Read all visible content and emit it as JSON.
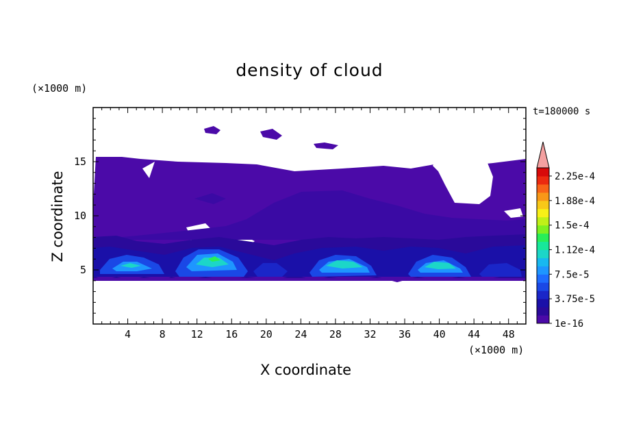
{
  "chart_data": {
    "type": "heatmap",
    "title": "density of cloud",
    "xlabel": "X coordinate",
    "ylabel": "Z coordinate",
    "x_unit": "(×1000 m)",
    "y_unit": "(×1000 m)",
    "time_label": "t=180000 s",
    "xlim": [
      0,
      50
    ],
    "ylim": [
      0,
      20
    ],
    "x_ticks": [
      "4",
      "8",
      "12",
      "16",
      "20",
      "24",
      "28",
      "32",
      "36",
      "40",
      "44",
      "48"
    ],
    "x_tick_values": [
      4,
      8,
      12,
      16,
      20,
      24,
      28,
      32,
      36,
      40,
      44,
      48
    ],
    "y_ticks": [
      "5",
      "10",
      "15"
    ],
    "y_tick_values": [
      5,
      10,
      15
    ],
    "colorbar": {
      "labels": [
        "1e-16",
        "3.75e-5",
        "7.5e-5",
        "1.12e-4",
        "1.5e-4",
        "1.88e-4",
        "2.25e-4"
      ],
      "levels": [
        1e-16,
        3.75e-05,
        7.5e-05,
        0.000112,
        0.00015,
        0.000188,
        0.000225
      ],
      "colors": [
        "#4b0aa8",
        "#2a0a9a",
        "#1a10a8",
        "#1a26c8",
        "#1a48e6",
        "#1e6cff",
        "#1e96ff",
        "#18b8f0",
        "#1cd6c8",
        "#18e89a",
        "#28ee58",
        "#7ef020",
        "#c0f018",
        "#f8f018",
        "#f8c818",
        "#f89818",
        "#f86418",
        "#ec2a10",
        "#d80a0a"
      ],
      "overflow_color": "#f4a0a0"
    },
    "field_regions": [
      {
        "level": 0,
        "z_range": [
          4.3,
          15.3
        ],
        "x_range": [
          0,
          50
        ],
        "note": "background cloud layer"
      },
      {
        "level": 1,
        "z_range": [
          9.0,
          12.0
        ],
        "x_range": [
          19,
          35
        ]
      },
      {
        "level": 2,
        "z_range": [
          4.3,
          8.3
        ],
        "x_range": [
          0,
          50
        ]
      },
      {
        "level": 3,
        "z_range": [
          4.5,
          7.5
        ],
        "x_range": [
          0,
          50
        ]
      },
      {
        "level": 5,
        "z_range": [
          4.8,
          6.6
        ],
        "x_range": [
          2,
          8
        ]
      },
      {
        "level": 6,
        "z_range": [
          4.8,
          7.2
        ],
        "x_range": [
          11,
          18
        ]
      },
      {
        "level": 11,
        "z_range": [
          5.8,
          6.3
        ],
        "x_range": [
          13.5,
          15
        ]
      },
      {
        "level": 5,
        "z_range": [
          4.8,
          6.5
        ],
        "x_range": [
          25,
          32
        ]
      },
      {
        "level": 5,
        "z_range": [
          4.8,
          6.4
        ],
        "x_range": [
          37,
          43
        ]
      }
    ]
  }
}
